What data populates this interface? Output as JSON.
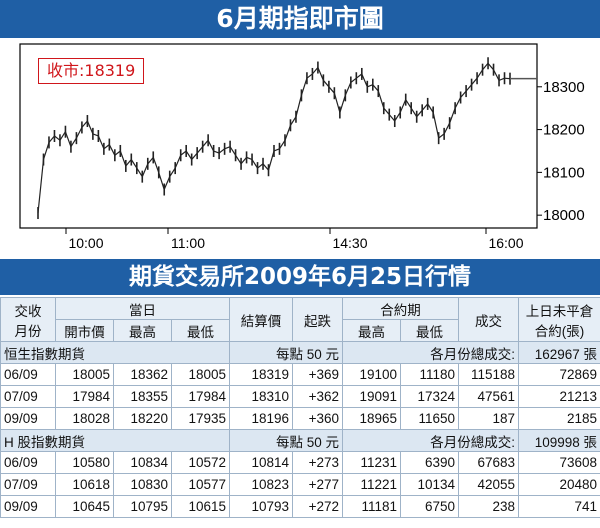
{
  "title": "6月期指即市圖",
  "subtitle": "期貨交易所2009年6月25日行情",
  "close_label": "收市:18319",
  "chart_data": {
    "type": "line",
    "title": "6月期指即市圖",
    "x_ticks": [
      "10:00",
      "11:00",
      "14:30",
      "16:00"
    ],
    "y_ticks": [
      18000,
      18100,
      18200,
      18300
    ],
    "ylim": [
      17970,
      18400
    ],
    "close": 18319,
    "colors": {
      "line": "#222222",
      "reference": "#555555",
      "axis": "#000000"
    },
    "series": [
      {
        "values": [
          18005,
          18130,
          18170,
          18185,
          18175,
          18195,
          18160,
          18180,
          18205,
          18220,
          18190,
          18185,
          18155,
          18165,
          18140,
          18150,
          18115,
          18130,
          18110,
          18090,
          18120,
          18135,
          18100,
          18060,
          18090,
          18110,
          18140,
          18150,
          18130,
          18145,
          18160,
          18175,
          18150,
          18145,
          18155,
          18160,
          18140,
          18120,
          18135,
          18130,
          18110,
          18120,
          18105,
          18150,
          18155,
          18175,
          18210,
          18230,
          18280,
          18320,
          18330,
          18345,
          18315,
          18300,
          18285,
          18240,
          18280,
          18310,
          18320,
          18330,
          18300,
          18305,
          18290,
          18250,
          18235,
          18220,
          18240,
          18270,
          18250,
          18230,
          18245,
          18260,
          18240,
          18180,
          18190,
          18215,
          18250,
          18275,
          18290,
          18305,
          18320,
          18340,
          18355,
          18340,
          18315,
          18320,
          18319
        ]
      }
    ]
  },
  "table": {
    "head1": [
      "交收\n月份",
      "當日",
      "結算價",
      "起跌",
      "合約期",
      "成交",
      "上日未平倉\n合約(張)"
    ],
    "head2": [
      "開市價",
      "最高",
      "最低",
      "最高",
      "最低"
    ],
    "sections": [
      {
        "label": "恒生指數期貨",
        "unit": "每點 50 元",
        "total_label": "各月份總成交:",
        "total": "162967 張",
        "rows": [
          [
            "06/09",
            "18005",
            "18362",
            "18005",
            "18319",
            "+369",
            "19100",
            "11180",
            "115188",
            "72869"
          ],
          [
            "07/09",
            "17984",
            "18355",
            "17984",
            "18310",
            "+362",
            "19091",
            "17324",
            "47561",
            "21213"
          ],
          [
            "09/09",
            "18028",
            "18220",
            "17935",
            "18196",
            "+360",
            "18965",
            "11650",
            "187",
            "2185"
          ]
        ]
      },
      {
        "label": "H 股指數期貨",
        "unit": "每點 50 元",
        "total_label": "各月份總成交:",
        "total": "109998 張",
        "rows": [
          [
            "06/09",
            "10580",
            "10834",
            "10572",
            "10814",
            "+273",
            "11231",
            "6390",
            "67683",
            "73608"
          ],
          [
            "07/09",
            "10618",
            "10830",
            "10577",
            "10823",
            "+277",
            "11221",
            "10134",
            "42055",
            "20480"
          ],
          [
            "09/09",
            "10645",
            "10795",
            "10615",
            "10793",
            "+272",
            "11181",
            "6750",
            "238",
            "741"
          ]
        ]
      }
    ]
  }
}
